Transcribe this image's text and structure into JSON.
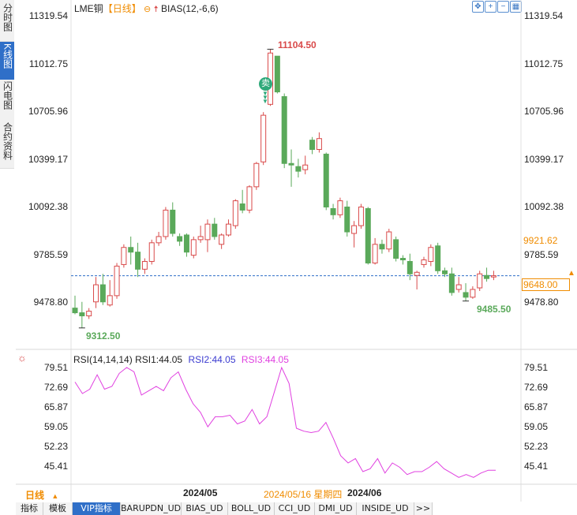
{
  "header": {
    "symbol": "LME铜",
    "period": "【日线】",
    "indicator": "BIAS(12,-6,6)"
  },
  "left_tabs": [
    {
      "label": "分时图",
      "active": false
    },
    {
      "label": "K线图",
      "active": true
    },
    {
      "label": "闪电图",
      "active": false
    },
    {
      "label": "合约资料",
      "active": false
    }
  ],
  "toolbar_icons": [
    "expand-icon",
    "zoom-in-icon",
    "zoom-out-icon",
    "grid-icon"
  ],
  "price_axis": {
    "ticks": [
      "11319.54",
      "11012.75",
      "10705.96",
      "10399.17",
      "10092.38",
      "9785.59",
      "9478.80"
    ],
    "right_ticks": [
      "11319.54",
      "11012.75",
      "10705.96",
      "10399.17",
      "10092.38",
      "9785.59",
      "9478.80"
    ],
    "highlight_high": "9921.62",
    "current_price": "9648.00"
  },
  "annotations": {
    "high_label": "11104.50",
    "low_label": "9312.50",
    "recent_low_label": "9485.50",
    "sell_badge": "卖"
  },
  "rsi": {
    "title": "RSI(14,14,14)",
    "rsi1": "RSI1:44.05",
    "rsi2": "RSI2:44.05",
    "rsi3": "RSI3:44.05",
    "ticks": [
      "79.51",
      "72.69",
      "65.87",
      "59.05",
      "52.23",
      "45.41"
    ],
    "right_ticks": [
      "79.51",
      "72.69",
      "65.87",
      "59.05",
      "52.23",
      "45.41"
    ]
  },
  "date_axis": {
    "month1": "2024/05",
    "cursor_date": "2024/05/16 星期四",
    "month2": "2024/06"
  },
  "bottom": {
    "period_button": "日线",
    "tabs": [
      "指标",
      "模板",
      "VIP指标",
      "BARUPDN_UD",
      "BIAS_UD",
      "BOLL_UD",
      "CCI_UD",
      "DMI_UD",
      "INSIDE_UD",
      ">>"
    ],
    "active_tab": "VIP指标"
  },
  "colors": {
    "up": "#d94a4a",
    "down": "#5aa95a",
    "rsi_line": "#e040e0",
    "current_line": "#2f6fc8",
    "accent_orange": "#f08c00",
    "rsi2_color": "#3b3bd0"
  },
  "chart_data": [
    {
      "type": "candlestick",
      "title": "LME铜【日线】",
      "ylim": [
        9312.5,
        11319.54
      ],
      "y_ticks": [
        11319.54,
        11012.75,
        10705.96,
        10399.17,
        10092.38,
        9785.59,
        9478.8
      ],
      "current_price": 9648.0,
      "candles": [
        {
          "o": 9440,
          "h": 9520,
          "l": 9400,
          "c": 9410
        },
        {
          "o": 9410,
          "h": 9480,
          "l": 9312.5,
          "c": 9390
        },
        {
          "o": 9390,
          "h": 9440,
          "l": 9370,
          "c": 9420
        },
        {
          "o": 9480,
          "h": 9640,
          "l": 9440,
          "c": 9590
        },
        {
          "o": 9590,
          "h": 9660,
          "l": 9460,
          "c": 9480
        },
        {
          "o": 9460,
          "h": 9620,
          "l": 9450,
          "c": 9520
        },
        {
          "o": 9520,
          "h": 9730,
          "l": 9500,
          "c": 9710
        },
        {
          "o": 9720,
          "h": 9850,
          "l": 9700,
          "c": 9830
        },
        {
          "o": 9830,
          "h": 9900,
          "l": 9720,
          "c": 9800
        },
        {
          "o": 9800,
          "h": 9860,
          "l": 9640,
          "c": 9690
        },
        {
          "o": 9690,
          "h": 9760,
          "l": 9660,
          "c": 9740
        },
        {
          "o": 9740,
          "h": 9880,
          "l": 9720,
          "c": 9860
        },
        {
          "o": 9860,
          "h": 9930,
          "l": 9840,
          "c": 9900
        },
        {
          "o": 9900,
          "h": 10090,
          "l": 9880,
          "c": 10070
        },
        {
          "o": 10070,
          "h": 10120,
          "l": 9900,
          "c": 9920
        },
        {
          "o": 9900,
          "h": 9920,
          "l": 9840,
          "c": 9870
        },
        {
          "o": 9910,
          "h": 9920,
          "l": 9770,
          "c": 9800
        },
        {
          "o": 9780,
          "h": 9900,
          "l": 9760,
          "c": 9880
        },
        {
          "o": 9880,
          "h": 9970,
          "l": 9860,
          "c": 9900
        },
        {
          "o": 9880,
          "h": 10010,
          "l": 9800,
          "c": 9980
        },
        {
          "o": 9980,
          "h": 10020,
          "l": 9880,
          "c": 9900
        },
        {
          "o": 9850,
          "h": 9920,
          "l": 9820,
          "c": 9910
        },
        {
          "o": 9910,
          "h": 10010,
          "l": 9900,
          "c": 9980
        },
        {
          "o": 9970,
          "h": 10140,
          "l": 9950,
          "c": 10130
        },
        {
          "o": 10110,
          "h": 10200,
          "l": 10050,
          "c": 10070
        },
        {
          "o": 10070,
          "h": 10230,
          "l": 10050,
          "c": 10220
        },
        {
          "o": 10220,
          "h": 10380,
          "l": 10200,
          "c": 10370
        },
        {
          "o": 10380,
          "h": 10700,
          "l": 10360,
          "c": 10680
        },
        {
          "o": 10750,
          "h": 11104.5,
          "l": 10740,
          "c": 11080
        },
        {
          "o": 11060,
          "h": 11040,
          "l": 10820,
          "c": 10830
        },
        {
          "o": 10800,
          "h": 10820,
          "l": 10340,
          "c": 10370
        },
        {
          "o": 10370,
          "h": 10460,
          "l": 10220,
          "c": 10360
        },
        {
          "o": 10350,
          "h": 10400,
          "l": 10280,
          "c": 10320
        },
        {
          "o": 10330,
          "h": 10420,
          "l": 10300,
          "c": 10360
        },
        {
          "o": 10520,
          "h": 10540,
          "l": 10430,
          "c": 10460
        },
        {
          "o": 10460,
          "h": 10570,
          "l": 10440,
          "c": 10530
        },
        {
          "o": 10430,
          "h": 10440,
          "l": 10070,
          "c": 10090
        },
        {
          "o": 10080,
          "h": 10110,
          "l": 10010,
          "c": 10040
        },
        {
          "o": 10040,
          "h": 10150,
          "l": 10020,
          "c": 10130
        },
        {
          "o": 10090,
          "h": 10130,
          "l": 9900,
          "c": 9930
        },
        {
          "o": 9920,
          "h": 10000,
          "l": 9830,
          "c": 9970
        },
        {
          "o": 9970,
          "h": 10110,
          "l": 9950,
          "c": 10090
        },
        {
          "o": 10080,
          "h": 10090,
          "l": 9720,
          "c": 9730
        },
        {
          "o": 9730,
          "h": 9890,
          "l": 9720,
          "c": 9850
        },
        {
          "o": 9850,
          "h": 9880,
          "l": 9790,
          "c": 9820
        },
        {
          "o": 9820,
          "h": 9950,
          "l": 9800,
          "c": 9930
        },
        {
          "o": 9880,
          "h": 9900,
          "l": 9740,
          "c": 9760
        },
        {
          "o": 9760,
          "h": 9780,
          "l": 9720,
          "c": 9750
        },
        {
          "o": 9740,
          "h": 9790,
          "l": 9620,
          "c": 9660
        },
        {
          "o": 9650,
          "h": 9680,
          "l": 9560,
          "c": 9670
        },
        {
          "o": 9720,
          "h": 9770,
          "l": 9700,
          "c": 9750
        },
        {
          "o": 9740,
          "h": 9850,
          "l": 9710,
          "c": 9830
        },
        {
          "o": 9840,
          "h": 9860,
          "l": 9660,
          "c": 9680
        },
        {
          "o": 9680,
          "h": 9700,
          "l": 9640,
          "c": 9660
        },
        {
          "o": 9660,
          "h": 9700,
          "l": 9520,
          "c": 9540
        },
        {
          "o": 9560,
          "h": 9640,
          "l": 9540,
          "c": 9590
        },
        {
          "o": 9540,
          "h": 9600,
          "l": 9485.5,
          "c": 9510
        },
        {
          "o": 9510,
          "h": 9580,
          "l": 9500,
          "c": 9560
        },
        {
          "o": 9570,
          "h": 9680,
          "l": 9550,
          "c": 9660
        },
        {
          "o": 9650,
          "h": 9700,
          "l": 9610,
          "c": 9630
        },
        {
          "o": 9640,
          "h": 9680,
          "l": 9620,
          "c": 9648
        }
      ]
    },
    {
      "type": "line",
      "title": "RSI(14,14,14)",
      "ylim": [
        41,
        81
      ],
      "y_ticks": [
        79.51,
        72.69,
        65.87,
        59.05,
        52.23,
        45.41
      ],
      "series": [
        {
          "name": "RSI1",
          "values": [
            74.5,
            70.5,
            72.0,
            77.0,
            72.0,
            73.0,
            77.5,
            79.5,
            78.0,
            70.0,
            71.5,
            73.0,
            71.5,
            76.0,
            78.0,
            72.0,
            67.0,
            64.0,
            59.0,
            62.5,
            62.5,
            63.0,
            60.0,
            61.0,
            65.0,
            60.0,
            62.5,
            71.0,
            79.5,
            74.0,
            58.5,
            57.5,
            57.0,
            57.5,
            60.5,
            55.0,
            49.0,
            46.5,
            48.0,
            43.5,
            44.5,
            48.0,
            43.0,
            46.5,
            45.0,
            42.5,
            43.5,
            43.5,
            45.0,
            47.0,
            44.5,
            43.0,
            41.5,
            42.5,
            41.5,
            43.0,
            44.0,
            44.0
          ]
        }
      ]
    }
  ]
}
